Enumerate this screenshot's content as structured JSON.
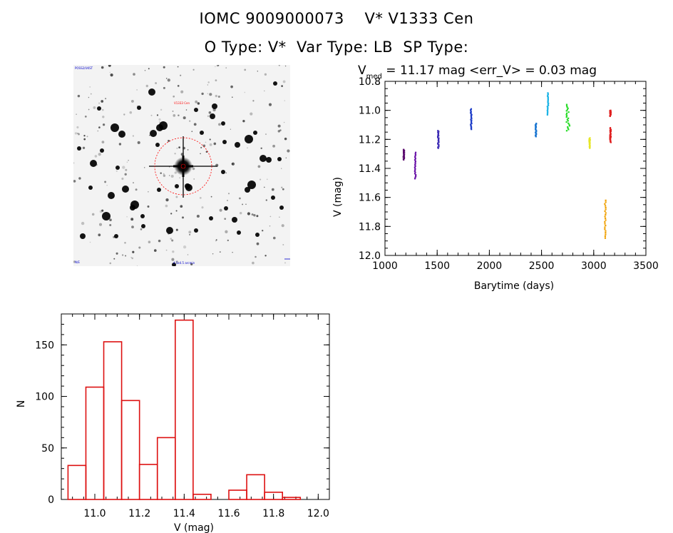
{
  "header": {
    "line1": "IOMC 9009000073    V* V1333 Cen",
    "line2": "O Type: V*  Var Type: LB  SP Type:"
  },
  "image_panel": {
    "top_left_label": "POSS2/UKST",
    "center_label": "V1333 Cen",
    "bottom_center_label": "4.5x4.5 arcmin",
    "bottom_left_label": "N/E",
    "marker_color": "#ff0000"
  },
  "chart_data": [
    {
      "type": "scatter",
      "title_parts": {
        "v": "V",
        "sub": "med",
        "rest": " = 11.17 mag <err_V> = 0.03 mag"
      },
      "xlabel": "Barytime (days)",
      "ylabel": "V (mag)",
      "xlim": [
        1000,
        3500
      ],
      "ylim": [
        12.0,
        10.8
      ],
      "y_inverted": true,
      "xticks": [
        1000,
        1500,
        2000,
        2500,
        3000,
        3500
      ],
      "yticks": [
        10.8,
        11.0,
        11.2,
        11.4,
        11.6,
        11.8,
        12.0
      ],
      "ytick_labels": [
        "10.8",
        "11.0",
        "11.2",
        "11.4",
        "11.6",
        "11.8",
        "12.0"
      ],
      "clusters": [
        {
          "x": 1180,
          "y_min": 11.27,
          "y_max": 11.34,
          "color": "#5a0a6e"
        },
        {
          "x": 1290,
          "y_min": 11.29,
          "y_max": 11.47,
          "color": "#6a14a8"
        },
        {
          "x": 1510,
          "y_min": 11.14,
          "y_max": 11.26,
          "color": "#3a28b4"
        },
        {
          "x": 1825,
          "y_min": 10.99,
          "y_max": 11.13,
          "color": "#1c3cc8"
        },
        {
          "x": 2445,
          "y_min": 11.09,
          "y_max": 11.18,
          "color": "#1e78d2"
        },
        {
          "x": 2560,
          "y_min": 10.88,
          "y_max": 11.03,
          "color": "#1eb4e6"
        },
        {
          "x": 2755,
          "y_min": 10.96,
          "y_max": 11.14,
          "color": "#28dc28"
        },
        {
          "x": 2960,
          "y_min": 11.19,
          "y_max": 11.26,
          "color": "#e6e628"
        },
        {
          "x": 3110,
          "y_min": 11.62,
          "y_max": 11.88,
          "color": "#f0a000"
        },
        {
          "x": 3160,
          "y_min": 11.0,
          "y_max": 11.04,
          "color": "#e02020"
        },
        {
          "x": 3160,
          "y_min": 11.12,
          "y_max": 11.22,
          "color": "#e02020"
        }
      ]
    },
    {
      "type": "bar",
      "xlabel": "V (mag)",
      "ylabel": "N",
      "xlim": [
        10.85,
        12.05
      ],
      "ylim": [
        0,
        180
      ],
      "xticks": [
        11.0,
        11.2,
        11.4,
        11.6,
        11.8,
        12.0
      ],
      "xtick_labels": [
        "11.0",
        "11.2",
        "11.4",
        "11.6",
        "11.8",
        "12.0"
      ],
      "yticks": [
        0,
        50,
        100,
        150
      ],
      "bin_width": 0.08,
      "bins": [
        10.88,
        10.96,
        11.04,
        11.12,
        11.2,
        11.28,
        11.36,
        11.44,
        11.52,
        11.6,
        11.68,
        11.76,
        11.84
      ],
      "values": [
        33,
        109,
        153,
        96,
        34,
        60,
        174,
        5,
        0,
        9,
        24,
        7,
        2
      ],
      "bar_color": "#dd1111"
    }
  ]
}
